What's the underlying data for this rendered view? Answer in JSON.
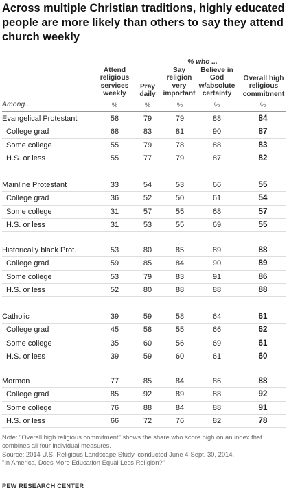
{
  "title": "Across multiple Christian traditions, highly educated people are more likely than others to say they attend church weekly",
  "supheader": "% who ...",
  "among_label": "Among...",
  "chart_data": {
    "type": "table",
    "columns": [
      "Attend religious services weekly",
      "Pray daily",
      "Say religion very important",
      "Believe in God w/absolute certainty",
      "Overall high religious commitment"
    ],
    "column_units": [
      "%",
      "%",
      "%",
      "%",
      "%"
    ],
    "groups": [
      {
        "name": "Evangelical Protestant",
        "values": [
          58,
          79,
          79,
          88,
          84
        ],
        "sub": [
          {
            "name": "College grad",
            "values": [
              68,
              83,
              81,
              90,
              87
            ]
          },
          {
            "name": "Some college",
            "values": [
              55,
              79,
              78,
              88,
              83
            ]
          },
          {
            "name": "H.S. or less",
            "values": [
              55,
              77,
              79,
              87,
              82
            ]
          }
        ]
      },
      {
        "name": "Mainline Protestant",
        "values": [
          33,
          54,
          53,
          66,
          55
        ],
        "sub": [
          {
            "name": "College grad",
            "values": [
              36,
              52,
              50,
              61,
              54
            ]
          },
          {
            "name": "Some college",
            "values": [
              31,
              57,
              55,
              68,
              57
            ]
          },
          {
            "name": "H.S. or less",
            "values": [
              31,
              53,
              55,
              69,
              55
            ]
          }
        ]
      },
      {
        "name": "Historically black Prot.",
        "values": [
          53,
          80,
          85,
          89,
          88
        ],
        "sub": [
          {
            "name": "College grad",
            "values": [
              59,
              85,
              84,
              90,
              89
            ]
          },
          {
            "name": "Some college",
            "values": [
              53,
              79,
              83,
              91,
              86
            ]
          },
          {
            "name": "H.S. or less",
            "values": [
              52,
              80,
              88,
              88,
              88
            ]
          }
        ]
      },
      {
        "name": "Catholic",
        "values": [
          39,
          59,
          58,
          64,
          61
        ],
        "sub": [
          {
            "name": "College grad",
            "values": [
              45,
              58,
              55,
              66,
              62
            ]
          },
          {
            "name": "Some college",
            "values": [
              35,
              60,
              56,
              69,
              61
            ]
          },
          {
            "name": "H.S. or less",
            "values": [
              39,
              59,
              60,
              61,
              60
            ]
          }
        ]
      },
      {
        "name": "Mormon",
        "values": [
          77,
          85,
          84,
          86,
          88
        ],
        "sub": [
          {
            "name": "College grad",
            "values": [
              85,
              92,
              89,
              88,
              92
            ]
          },
          {
            "name": "Some college",
            "values": [
              76,
              88,
              84,
              88,
              91
            ]
          },
          {
            "name": "H.S. or less",
            "values": [
              66,
              72,
              76,
              82,
              78
            ]
          }
        ]
      }
    ]
  },
  "note": "Note: \"Overall high religious commitment\" shows the share who score high on an index that combines all four individual measures.",
  "source": "Source: 2014 U.S. Religious Landscape Study, conducted June 4-Sept. 30, 2014.",
  "report": "\"In America, Does More Education Equal Less Religion?\"",
  "brand": "PEW RESEARCH CENTER"
}
